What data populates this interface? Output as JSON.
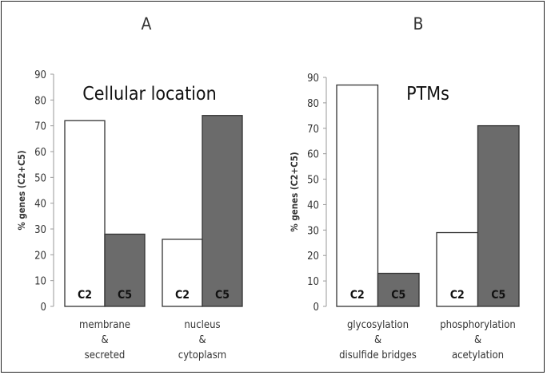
{
  "chart_data": [
    {
      "type": "bar",
      "panel_label": "A",
      "title": "Cellular location",
      "ylabel": "% genes (C2+C5)",
      "ylim": [
        0,
        90
      ],
      "yticks": [
        0,
        10,
        20,
        30,
        40,
        50,
        60,
        70,
        80,
        90
      ],
      "categories": [
        [
          "membrane",
          "&",
          "secreted"
        ],
        [
          "nucleus",
          "&",
          "cytoplasm"
        ]
      ],
      "series": [
        {
          "name": "C2",
          "values": [
            72,
            26
          ],
          "color": "#ffffff"
        },
        {
          "name": "C5",
          "values": [
            28,
            74
          ],
          "color": "#6b6b6b"
        }
      ],
      "grid": false
    },
    {
      "type": "bar",
      "panel_label": "B",
      "title": "PTMs",
      "ylabel": "% genes (C2+C5)",
      "ylim": [
        0,
        90
      ],
      "yticks": [
        0,
        10,
        20,
        30,
        40,
        50,
        60,
        70,
        80,
        90
      ],
      "categories": [
        [
          "glycosylation",
          "&",
          "disulfide bridges"
        ],
        [
          "phosphorylation",
          "&",
          "acetylation"
        ]
      ],
      "series": [
        {
          "name": "C2",
          "values": [
            87,
            29
          ],
          "color": "#ffffff"
        },
        {
          "name": "C5",
          "values": [
            13,
            71
          ],
          "color": "#6b6b6b"
        }
      ],
      "grid": false
    }
  ]
}
